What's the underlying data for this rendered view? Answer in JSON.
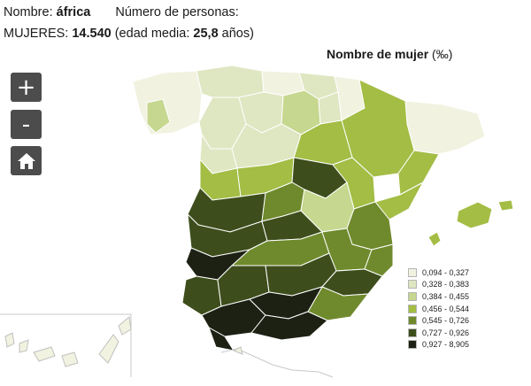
{
  "info": {
    "name_label": "Nombre: ",
    "name_value": "áfrica",
    "persons_label": "Número de personas:",
    "women_label": "MUJERES: ",
    "women_value": "14.540",
    "age_prefix": " (edad media: ",
    "age_value": "25,8",
    "age_suffix": " años)"
  },
  "map": {
    "title": "Nombre de mujer",
    "unit": "(‰)"
  },
  "controls": {
    "zoom_in": "+",
    "zoom_out": "-",
    "home_icon": "home-icon"
  },
  "legend": [
    {
      "label": "0,094 - 0,327",
      "color": "#f1f2e0"
    },
    {
      "label": "0,328 - 0,383",
      "color": "#dfe6c2"
    },
    {
      "label": "0,384 - 0,455",
      "color": "#c6d78f"
    },
    {
      "label": "0,456 - 0,544",
      "color": "#a3bd45"
    },
    {
      "label": "0,545 - 0,726",
      "color": "#6f8a2c"
    },
    {
      "label": "0,727 - 0,926",
      "color": "#3d4e1c"
    },
    {
      "label": "0,927 - 8,905",
      "color": "#1c2114"
    }
  ],
  "colors": {
    "border": "#ffffff",
    "inset_border": "#c8c8c8",
    "controls_bg": "#4c4c4c"
  }
}
